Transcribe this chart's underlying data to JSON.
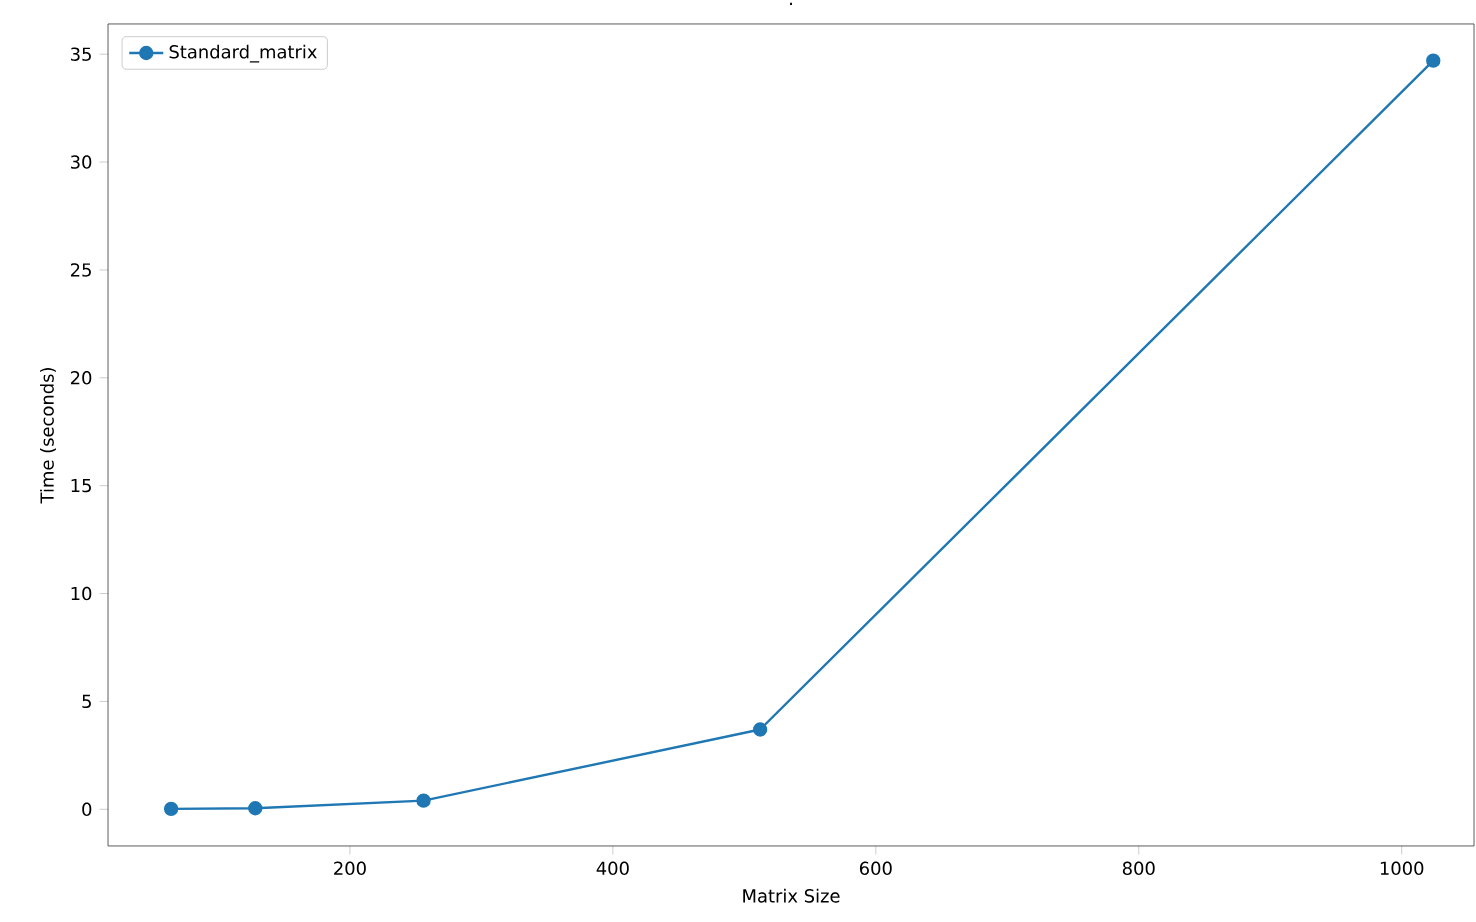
{
  "chart_data": {
    "type": "line",
    "title": ".",
    "xlabel": "Matrix Size",
    "ylabel": "Time (seconds)",
    "x": [
      64,
      128,
      256,
      512,
      1024
    ],
    "series": [
      {
        "name": "Standard_matrix",
        "color": "#1f77b4",
        "values": [
          0.02,
          0.05,
          0.4,
          3.7,
          34.7
        ]
      }
    ],
    "xlim": [
      16,
      1055
    ],
    "ylim": [
      -1.7,
      36.4
    ],
    "xticks": [
      200,
      400,
      600,
      800,
      1000
    ],
    "yticks": [
      0,
      5,
      10,
      15,
      20,
      25,
      30,
      35
    ],
    "legend": "top left",
    "marker": "circle",
    "line_style": "solid",
    "grid": false
  }
}
